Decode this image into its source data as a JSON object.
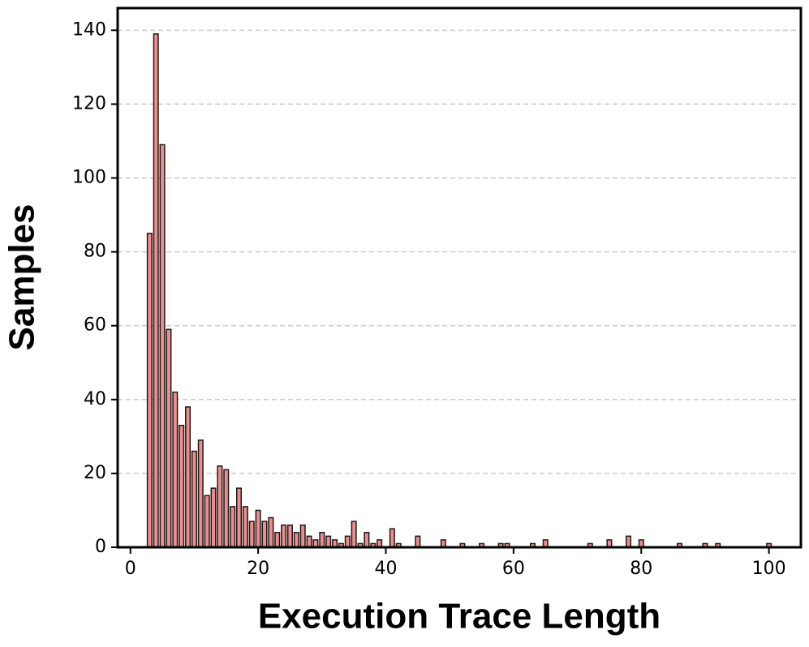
{
  "chart_data": {
    "type": "histogram",
    "xlabel": "Execution Trace Length",
    "ylabel": "Samples",
    "bins": [
      2.5,
      3.5,
      4.5,
      5.5,
      6.5,
      7.5,
      8.5,
      9.5,
      10.5,
      11.5,
      12.5,
      13.5,
      14.5,
      15.5,
      16.5,
      17.5,
      18.5,
      19.5,
      20.5,
      21.5,
      22.5,
      23.5,
      24.5,
      25.5,
      26.5,
      27.5,
      28.5,
      29.5,
      30.5,
      31.5,
      32.5,
      33.5,
      34.5,
      35.5,
      36.5,
      37.5,
      38.5,
      39.5,
      40.5,
      41.5,
      42.5,
      43.5,
      44.5,
      45.5,
      46.5,
      47.5,
      48.5,
      49.5,
      50.5,
      51.5,
      52.5,
      53.5,
      54.5,
      55.5,
      56.5,
      57.5,
      58.5,
      59.5,
      60.5,
      61.5,
      62.5,
      63.5,
      64.5,
      65.5,
      66.5,
      67.5,
      68.5,
      69.5,
      70.5,
      71.5,
      72.5,
      73.5,
      74.5,
      75.5,
      76.5,
      77.5,
      78.5,
      79.5,
      80.5,
      81.5,
      82.5,
      83.5,
      84.5,
      85.5,
      86.5,
      87.5,
      88.5,
      89.5,
      90.5,
      91.5,
      92.5,
      93.5,
      94.5,
      95.5,
      96.5,
      97.5,
      98.5,
      99.5,
      100.5
    ],
    "counts": [
      85,
      139,
      109,
      59,
      42,
      33,
      38,
      26,
      29,
      14,
      16,
      22,
      21,
      11,
      16,
      11,
      7,
      10,
      7,
      8,
      4,
      6,
      6,
      4,
      6,
      3,
      2,
      4,
      3,
      2,
      1,
      3,
      7,
      1,
      4,
      1,
      2,
      0,
      5,
      1,
      0,
      0,
      3,
      0,
      0,
      0,
      2,
      0,
      0,
      1,
      0,
      0,
      1,
      0,
      0,
      1,
      1,
      0,
      0,
      0,
      1,
      0,
      2,
      0,
      0,
      0,
      0,
      0,
      0,
      1,
      0,
      0,
      2,
      0,
      0,
      3,
      0,
      2,
      0,
      0,
      0,
      0,
      0,
      1,
      0,
      0,
      0,
      1,
      0,
      1,
      0,
      0,
      0,
      0,
      0,
      0,
      0,
      1
    ],
    "color": "#f08c8c",
    "edgecolor": "#1a1a1a",
    "xlim": [
      -2,
      105
    ],
    "ylim": [
      0,
      146
    ],
    "xticks": [
      0,
      20,
      40,
      60,
      80,
      100
    ],
    "yticks": [
      0,
      20,
      40,
      60,
      80,
      100,
      120,
      140
    ],
    "grid": true
  }
}
